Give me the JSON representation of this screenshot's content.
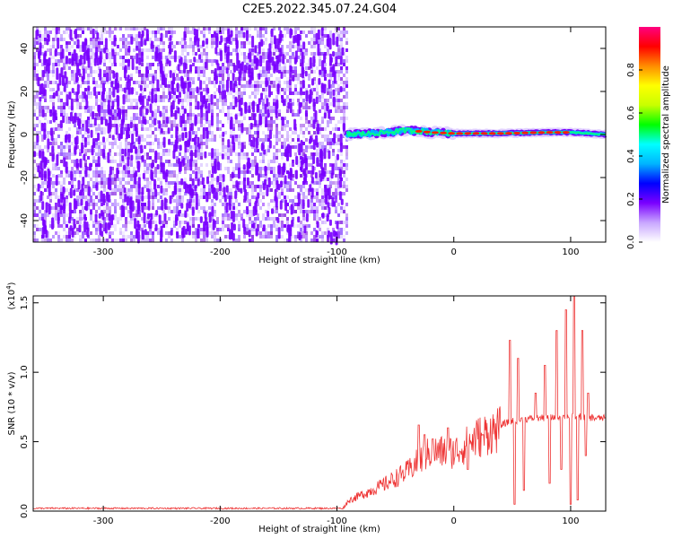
{
  "title": "C2E5.2022.345.07.24.G04",
  "chart_data": [
    {
      "type": "heatmap",
      "xlabel": "Height of straight line (km)",
      "ylabel": "Frequency (Hz)",
      "xlim": [
        -360,
        130
      ],
      "ylim": [
        -50,
        50
      ],
      "xticks": [
        -300,
        -200,
        -100,
        0,
        100
      ],
      "yticks": [
        -40,
        -20,
        0,
        20,
        40
      ],
      "noise_region_x": [
        -360,
        -92
      ],
      "signal_line": [
        {
          "x": -92,
          "y": 0
        },
        {
          "x": -60,
          "y": 0.8
        },
        {
          "x": -40,
          "y": 2
        },
        {
          "x": -20,
          "y": 1
        },
        {
          "x": 0,
          "y": 0.5
        },
        {
          "x": 40,
          "y": 0.5
        },
        {
          "x": 80,
          "y": 1
        },
        {
          "x": 100,
          "y": 1
        },
        {
          "x": 130,
          "y": 0
        }
      ],
      "colorbar": {
        "label": "Normalized spectral amplitude",
        "range": [
          0,
          1
        ],
        "ticks": [
          "0.0",
          "0.2",
          "0.4",
          "0.6",
          "0.8"
        ],
        "colors": [
          "#ffffff",
          "#c8a6ff",
          "#7a00ff",
          "#0000ff",
          "#00b4ff",
          "#00ffff",
          "#00ff00",
          "#c8ff00",
          "#ffff00",
          "#ff8c00",
          "#ff0000",
          "#ff0080"
        ]
      }
    },
    {
      "type": "line",
      "xlabel": "Height of straight line (km)",
      "ylabel": "SNR (10 * v/v)",
      "yscale_note": "(x10",
      "yscale_exp": "4",
      "yscale_close": ")",
      "xlim": [
        -360,
        130
      ],
      "ylim": [
        0,
        1.55
      ],
      "xticks": [
        -300,
        -200,
        -100,
        0,
        100
      ],
      "yticks": [
        "0.0",
        "0.5",
        "1.0",
        "1.5"
      ],
      "color": "#ee3333",
      "series": [
        {
          "points": [
            [
              -360,
              0.02
            ],
            [
              -300,
              0.02
            ],
            [
              -200,
              0.02
            ],
            [
              -120,
              0.02
            ],
            [
              -95,
              0.02
            ],
            [
              -90,
              0.08
            ],
            [
              -80,
              0.12
            ],
            [
              -70,
              0.16
            ],
            [
              -60,
              0.2
            ],
            [
              -50,
              0.25
            ],
            [
              -40,
              0.3
            ],
            [
              -30,
              0.38
            ],
            [
              -20,
              0.45
            ],
            [
              -10,
              0.45
            ],
            [
              0,
              0.45
            ],
            [
              10,
              0.5
            ],
            [
              20,
              0.56
            ],
            [
              30,
              0.6
            ],
            [
              40,
              0.62
            ],
            [
              50,
              0.65
            ],
            [
              60,
              0.66
            ],
            [
              70,
              0.67
            ],
            [
              80,
              0.67
            ],
            [
              90,
              0.68
            ],
            [
              100,
              0.68
            ],
            [
              110,
              0.68
            ],
            [
              120,
              0.67
            ],
            [
              130,
              0.67
            ]
          ],
          "spikes": [
            [
              -30,
              0.62
            ],
            [
              -25,
              0.55
            ],
            [
              -18,
              0.52
            ],
            [
              -5,
              0.6
            ],
            [
              12,
              0.3
            ],
            [
              25,
              0.55
            ],
            [
              48,
              1.23
            ],
            [
              52,
              0.05
            ],
            [
              55,
              1.1
            ],
            [
              60,
              0.15
            ],
            [
              70,
              0.85
            ],
            [
              78,
              1.05
            ],
            [
              82,
              0.2
            ],
            [
              88,
              1.3
            ],
            [
              92,
              0.3
            ],
            [
              96,
              1.45
            ],
            [
              100,
              0.05
            ],
            [
              103,
              1.55
            ],
            [
              106,
              0.08
            ],
            [
              110,
              1.3
            ],
            [
              113,
              0.4
            ],
            [
              115,
              0.85
            ]
          ]
        }
      ]
    }
  ]
}
